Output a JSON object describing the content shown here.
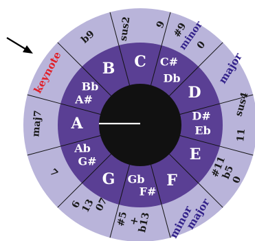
{
  "colors": {
    "outer_ring": "#b9b4da",
    "inner_ring": "#5a3f94",
    "center": "#111111",
    "divider": "#111111",
    "pointer": "#ffffff",
    "text_dark": "#1a1a1a",
    "text_blue": "#33228a",
    "text_red": "#e0202a",
    "note_text": "#ffffff"
  },
  "outer_segments": [
    {
      "text": "sus2",
      "color": "dark"
    },
    {
      "text": "9",
      "color": "dark"
    },
    {
      "text": "#9",
      "color": "dark"
    },
    {
      "text": "minor",
      "color": "blue"
    },
    {
      "text": "0",
      "color": "dark"
    },
    {
      "text": "major",
      "color": "blue"
    },
    {
      "text": "sus4",
      "color": "dark"
    },
    {
      "text": "11",
      "color": "dark"
    },
    {
      "text": "#11",
      "color": "dark"
    },
    {
      "text": "b5",
      "color": "dark"
    },
    {
      "text": "0",
      "color": "dark"
    },
    {
      "text": "major",
      "color": "blue"
    },
    {
      "text": "minor",
      "color": "blue"
    },
    {
      "text": "b13",
      "color": "dark"
    },
    {
      "text": "+",
      "color": "dark"
    },
    {
      "text": "#5",
      "color": "dark"
    },
    {
      "text": "07",
      "color": "dark"
    },
    {
      "text": "13",
      "color": "dark"
    },
    {
      "text": "6",
      "color": "dark"
    },
    {
      "text": "7",
      "color": "dark"
    },
    {
      "text": "maj7",
      "color": "dark"
    },
    {
      "text": "keynote",
      "color": "red"
    },
    {
      "text": "b9",
      "color": "dark"
    }
  ],
  "notes": [
    {
      "name": "C",
      "kind": "natural"
    },
    {
      "name": "C#",
      "kind": "accidental"
    },
    {
      "name": "Db",
      "kind": "accidental"
    },
    {
      "name": "D",
      "kind": "natural"
    },
    {
      "name": "D#",
      "kind": "accidental"
    },
    {
      "name": "Eb",
      "kind": "accidental"
    },
    {
      "name": "E",
      "kind": "natural"
    },
    {
      "name": "F",
      "kind": "natural"
    },
    {
      "name": "Gb",
      "kind": "accidental"
    },
    {
      "name": "F#",
      "kind": "accidental"
    },
    {
      "name": "G",
      "kind": "natural"
    },
    {
      "name": "Ab",
      "kind": "accidental"
    },
    {
      "name": "G#",
      "kind": "accidental"
    },
    {
      "name": "A",
      "kind": "natural"
    },
    {
      "name": "Bb",
      "kind": "accidental"
    },
    {
      "name": "A#",
      "kind": "accidental"
    },
    {
      "name": "B",
      "kind": "natural"
    }
  ],
  "arrow_icon": "arrow-pointing-at-keynote",
  "pointer_icon": "center-pointer-hand"
}
